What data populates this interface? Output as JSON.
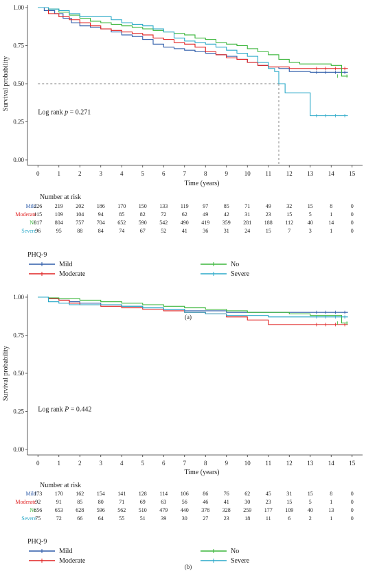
{
  "colors": {
    "Mild": "#2b5aa8",
    "Moderate": "#e02020",
    "No": "#3ab53a",
    "Severe": "#28a8c8",
    "text": "#222222",
    "axis": "#333333",
    "refline": "#555555"
  },
  "chart_data": [
    {
      "type": "line",
      "step": true,
      "panel_label": "(a)",
      "ylabel": "Survival probability",
      "xlabel": "Time (years)",
      "xlim": [
        -0.5,
        15.5
      ],
      "ylim": [
        0,
        1
      ],
      "xticks": [
        "0",
        "1",
        "2",
        "3",
        "4",
        "5",
        "6",
        "7",
        "8",
        "9",
        "10",
        "11",
        "12",
        "13",
        "14",
        "15"
      ],
      "yticks": [
        "0.00",
        "0.25",
        "0.50",
        "0.75",
        "1.00"
      ],
      "annotation": {
        "prefix": "Log rank ",
        "p": "p",
        "suffix": " = 0.271"
      },
      "median_line": {
        "x": 11.5,
        "y": 0.5
      },
      "legend_title": "PHQ-9",
      "risk_title": "Number at risk",
      "series": [
        {
          "name": "Mild",
          "color": "#2b5aa8",
          "x": [
            0,
            0.3,
            0.8,
            1.2,
            1.6,
            2.0,
            2.5,
            3.0,
            3.5,
            4.0,
            4.5,
            5.0,
            5.5,
            6.0,
            6.5,
            7.0,
            7.5,
            8.0,
            8.5,
            9.0,
            9.5,
            10.0,
            10.5,
            11.0,
            11.5,
            12.0,
            13.0,
            14.0,
            14.8
          ],
          "y": [
            1.0,
            0.98,
            0.96,
            0.93,
            0.9,
            0.88,
            0.87,
            0.86,
            0.84,
            0.82,
            0.81,
            0.79,
            0.76,
            0.74,
            0.73,
            0.72,
            0.71,
            0.7,
            0.69,
            0.68,
            0.66,
            0.64,
            0.62,
            0.61,
            0.6,
            0.58,
            0.575,
            0.575,
            0.575
          ]
        },
        {
          "name": "Moderate",
          "color": "#e02020",
          "x": [
            0,
            0.5,
            1.0,
            1.5,
            2.0,
            2.5,
            3.0,
            3.5,
            4.0,
            4.5,
            5.0,
            5.5,
            6.0,
            6.5,
            7.0,
            7.5,
            8.0,
            8.5,
            9.0,
            9.5,
            10.0,
            10.5,
            11.0,
            12.0,
            13.0,
            14.0,
            14.8
          ],
          "y": [
            1.0,
            0.96,
            0.94,
            0.92,
            0.9,
            0.88,
            0.86,
            0.85,
            0.84,
            0.83,
            0.82,
            0.8,
            0.79,
            0.77,
            0.76,
            0.74,
            0.71,
            0.69,
            0.67,
            0.66,
            0.64,
            0.62,
            0.61,
            0.6,
            0.6,
            0.6,
            0.6
          ]
        },
        {
          "name": "No",
          "color": "#3ab53a",
          "x": [
            0,
            0.5,
            1.0,
            1.5,
            2.0,
            2.5,
            3.0,
            3.5,
            4.0,
            4.5,
            5.0,
            5.5,
            6.0,
            6.5,
            7.0,
            7.5,
            8.0,
            8.5,
            9.0,
            9.5,
            10.0,
            10.5,
            11.0,
            11.5,
            12.0,
            12.5,
            13.0,
            14.0,
            14.5,
            14.8
          ],
          "y": [
            1.0,
            0.99,
            0.97,
            0.95,
            0.93,
            0.91,
            0.9,
            0.89,
            0.88,
            0.87,
            0.86,
            0.85,
            0.84,
            0.83,
            0.82,
            0.8,
            0.79,
            0.77,
            0.76,
            0.75,
            0.73,
            0.71,
            0.69,
            0.66,
            0.64,
            0.63,
            0.63,
            0.62,
            0.55,
            0.55
          ]
        },
        {
          "name": "Severe",
          "color": "#28a8c8",
          "x": [
            0,
            0.5,
            1.0,
            1.5,
            2.0,
            2.5,
            3.0,
            3.5,
            4.0,
            4.5,
            5.0,
            5.5,
            6.0,
            6.5,
            7.0,
            7.5,
            8.0,
            8.5,
            9.0,
            9.5,
            10.0,
            10.5,
            11.0,
            11.3,
            11.5,
            11.8,
            13.0,
            14.0,
            14.8
          ],
          "y": [
            1.0,
            0.99,
            0.98,
            0.96,
            0.94,
            0.94,
            0.94,
            0.92,
            0.9,
            0.89,
            0.88,
            0.86,
            0.84,
            0.8,
            0.78,
            0.77,
            0.76,
            0.74,
            0.72,
            0.7,
            0.68,
            0.64,
            0.6,
            0.58,
            0.5,
            0.44,
            0.29,
            0.29,
            0.29
          ]
        }
      ],
      "risk_table": {
        "Mild": [
          "226",
          "219",
          "202",
          "186",
          "170",
          "150",
          "133",
          "119",
          "97",
          "85",
          "71",
          "49",
          "32",
          "15",
          "8",
          "0"
        ],
        "Moderate": [
          "115",
          "109",
          "104",
          "94",
          "85",
          "82",
          "72",
          "62",
          "49",
          "42",
          "31",
          "23",
          "15",
          "5",
          "1",
          "0"
        ],
        "No": [
          "817",
          "804",
          "757",
          "704",
          "652",
          "590",
          "542",
          "490",
          "419",
          "359",
          "281",
          "188",
          "112",
          "40",
          "14",
          "0"
        ],
        "Severe": [
          "96",
          "95",
          "88",
          "84",
          "74",
          "67",
          "52",
          "41",
          "36",
          "31",
          "24",
          "15",
          "7",
          "3",
          "1",
          "0"
        ]
      }
    },
    {
      "type": "line",
      "step": true,
      "panel_label": "(b)",
      "ylabel": "Survival probability",
      "xlabel": "Time (years)",
      "xlim": [
        -0.5,
        15.5
      ],
      "ylim": [
        0,
        1
      ],
      "xticks": [
        "0",
        "1",
        "2",
        "3",
        "4",
        "5",
        "6",
        "7",
        "8",
        "9",
        "10",
        "11",
        "12",
        "13",
        "14",
        "15"
      ],
      "yticks": [
        "0.00",
        "0.25",
        "0.50",
        "0.75",
        "1.00"
      ],
      "annotation": {
        "prefix": "Log rank ",
        "p": "P",
        "suffix": " = 0.442"
      },
      "median_line": null,
      "legend_title": "PHQ-9",
      "risk_title": "Number at risk",
      "series": [
        {
          "name": "Mild",
          "color": "#2b5aa8",
          "x": [
            0,
            0.5,
            1.0,
            1.5,
            2.0,
            3.0,
            4.0,
            5.0,
            6.0,
            7.0,
            8.0,
            9.0,
            10.0,
            11.0,
            12.0,
            13.0,
            14.0,
            14.8
          ],
          "y": [
            1.0,
            0.99,
            0.98,
            0.97,
            0.96,
            0.95,
            0.94,
            0.93,
            0.92,
            0.91,
            0.91,
            0.9,
            0.9,
            0.9,
            0.9,
            0.9,
            0.9,
            0.9
          ]
        },
        {
          "name": "Moderate",
          "color": "#e02020",
          "x": [
            0,
            0.5,
            1.0,
            1.5,
            2.0,
            3.0,
            4.0,
            5.0,
            6.0,
            7.0,
            8.0,
            9.0,
            10.0,
            11.0,
            12.0,
            13.0,
            14.0,
            14.8
          ],
          "y": [
            1.0,
            0.99,
            0.98,
            0.96,
            0.95,
            0.94,
            0.93,
            0.92,
            0.91,
            0.9,
            0.89,
            0.87,
            0.85,
            0.82,
            0.82,
            0.82,
            0.82,
            0.82
          ]
        },
        {
          "name": "No",
          "color": "#3ab53a",
          "x": [
            0,
            0.5,
            1.0,
            2.0,
            3.0,
            4.0,
            5.0,
            6.0,
            7.0,
            8.0,
            9.0,
            10.0,
            11.0,
            12.0,
            13.0,
            14.0,
            14.5,
            14.8
          ],
          "y": [
            1.0,
            0.995,
            0.99,
            0.98,
            0.97,
            0.96,
            0.95,
            0.94,
            0.93,
            0.92,
            0.91,
            0.9,
            0.9,
            0.89,
            0.88,
            0.88,
            0.83,
            0.83
          ]
        },
        {
          "name": "Severe",
          "color": "#28a8c8",
          "x": [
            0,
            0.5,
            1.0,
            1.5,
            2.0,
            3.0,
            4.0,
            5.0,
            6.0,
            7.0,
            8.0,
            9.0,
            10.0,
            11.0,
            12.0,
            13.0,
            14.0,
            14.8
          ],
          "y": [
            1.0,
            0.97,
            0.96,
            0.95,
            0.95,
            0.95,
            0.94,
            0.93,
            0.92,
            0.9,
            0.89,
            0.88,
            0.88,
            0.87,
            0.87,
            0.87,
            0.87,
            0.87
          ]
        }
      ],
      "risk_table": {
        "Mild": [
          "173",
          "170",
          "162",
          "154",
          "141",
          "128",
          "114",
          "106",
          "86",
          "76",
          "62",
          "45",
          "31",
          "15",
          "8",
          "0"
        ],
        "Moderate": [
          "92",
          "91",
          "85",
          "80",
          "71",
          "69",
          "63",
          "56",
          "46",
          "41",
          "30",
          "23",
          "15",
          "5",
          "1",
          "0"
        ],
        "No": [
          "656",
          "653",
          "628",
          "596",
          "562",
          "510",
          "479",
          "440",
          "378",
          "328",
          "259",
          "177",
          "109",
          "40",
          "13",
          "0"
        ],
        "Severe": [
          "75",
          "72",
          "66",
          "64",
          "55",
          "51",
          "39",
          "30",
          "27",
          "23",
          "18",
          "11",
          "6",
          "2",
          "1",
          "0"
        ]
      }
    }
  ]
}
